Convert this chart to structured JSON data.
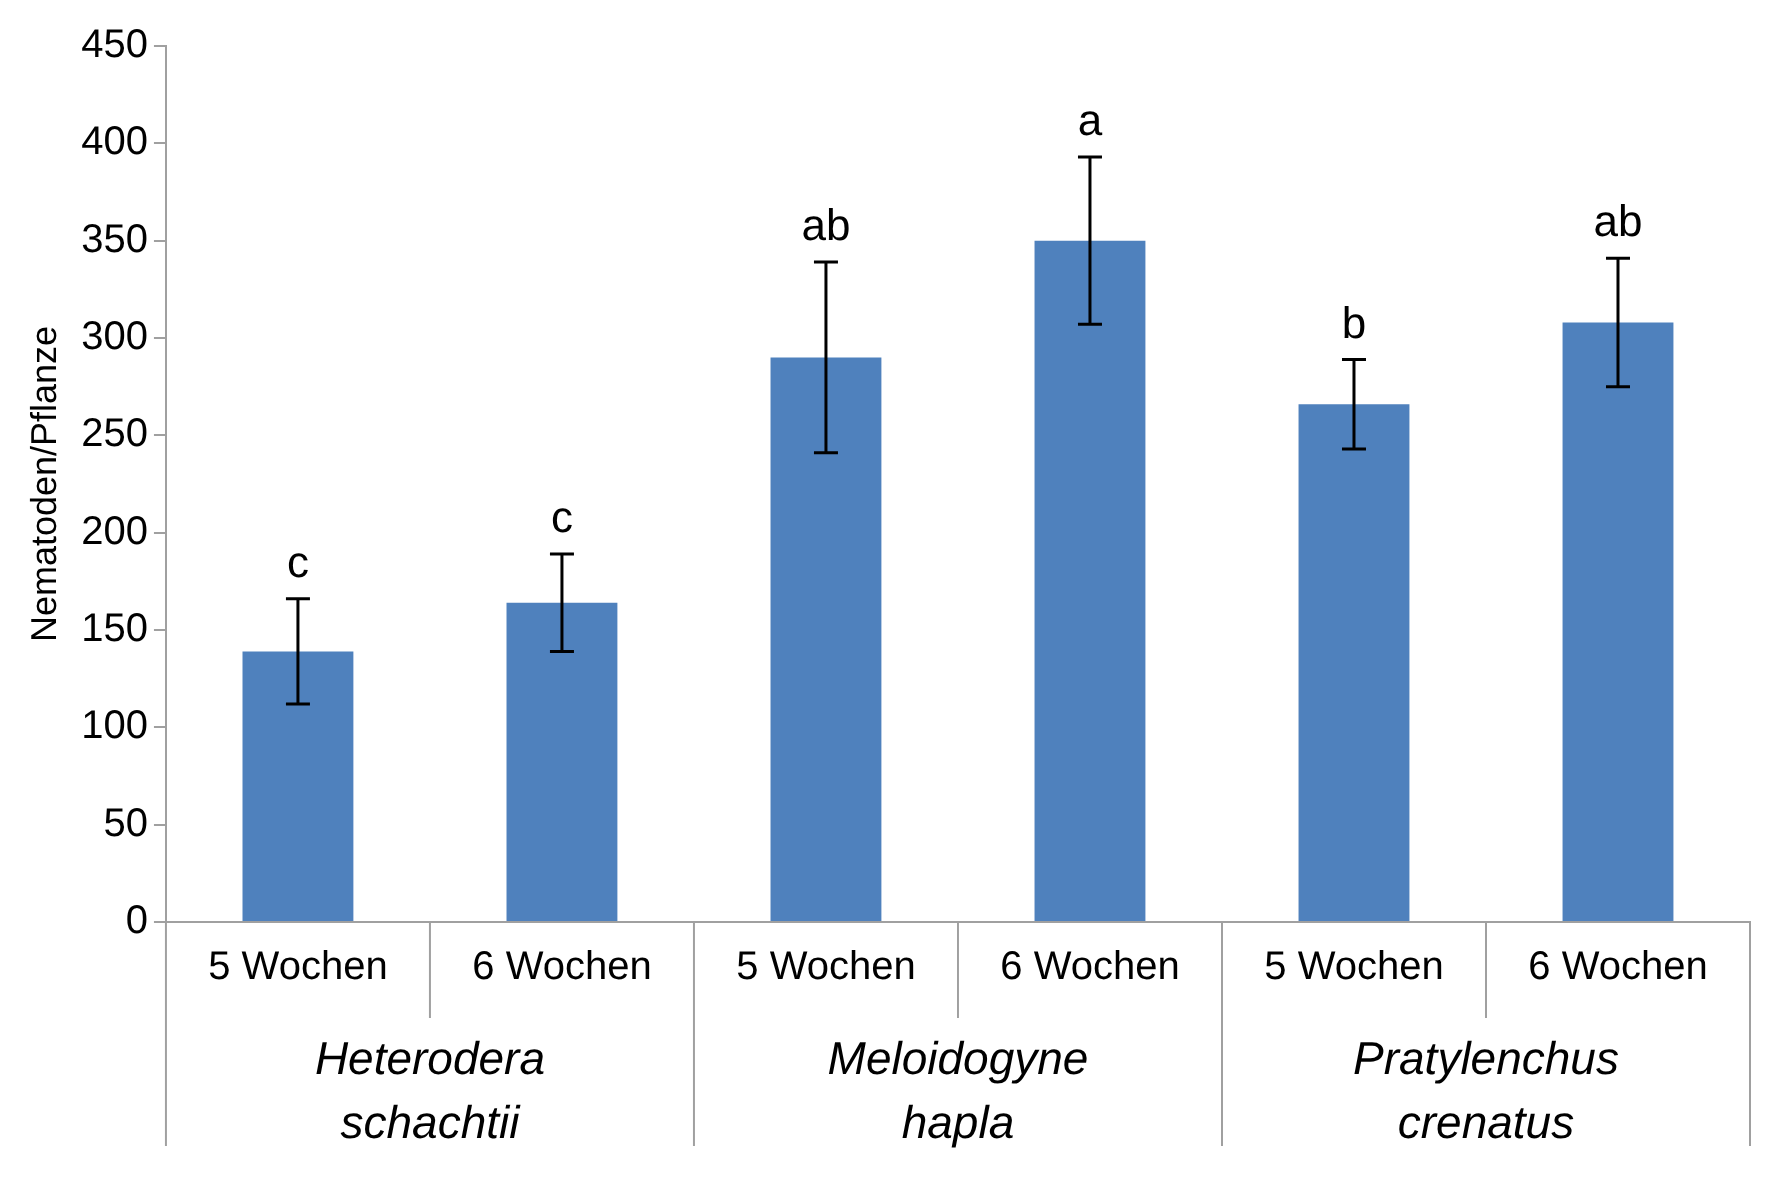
{
  "chart_data": {
    "type": "bar",
    "ylabel": "Nematoden/Pflanze",
    "categories": [
      "5 Wochen",
      "6 Wochen",
      "5 Wochen",
      "6 Wochen",
      "5 Wochen",
      "6 Wochen"
    ],
    "values": [
      139,
      164,
      290,
      350,
      266,
      308
    ],
    "errors": [
      27,
      25,
      49,
      43,
      23,
      33
    ],
    "value_labels": [
      "c",
      "c",
      "ab",
      "a",
      "b",
      "ab"
    ],
    "color": "#4f81bd",
    "ylim": [
      0,
      450
    ],
    "yticks": [
      0,
      50,
      100,
      150,
      200,
      250,
      300,
      350,
      400,
      450
    ],
    "grid": false,
    "legend": false,
    "annotations": [
      "Heterodera schachtii",
      "Meloidogyne hapla",
      "Pratylenchus crenatus"
    ]
  }
}
